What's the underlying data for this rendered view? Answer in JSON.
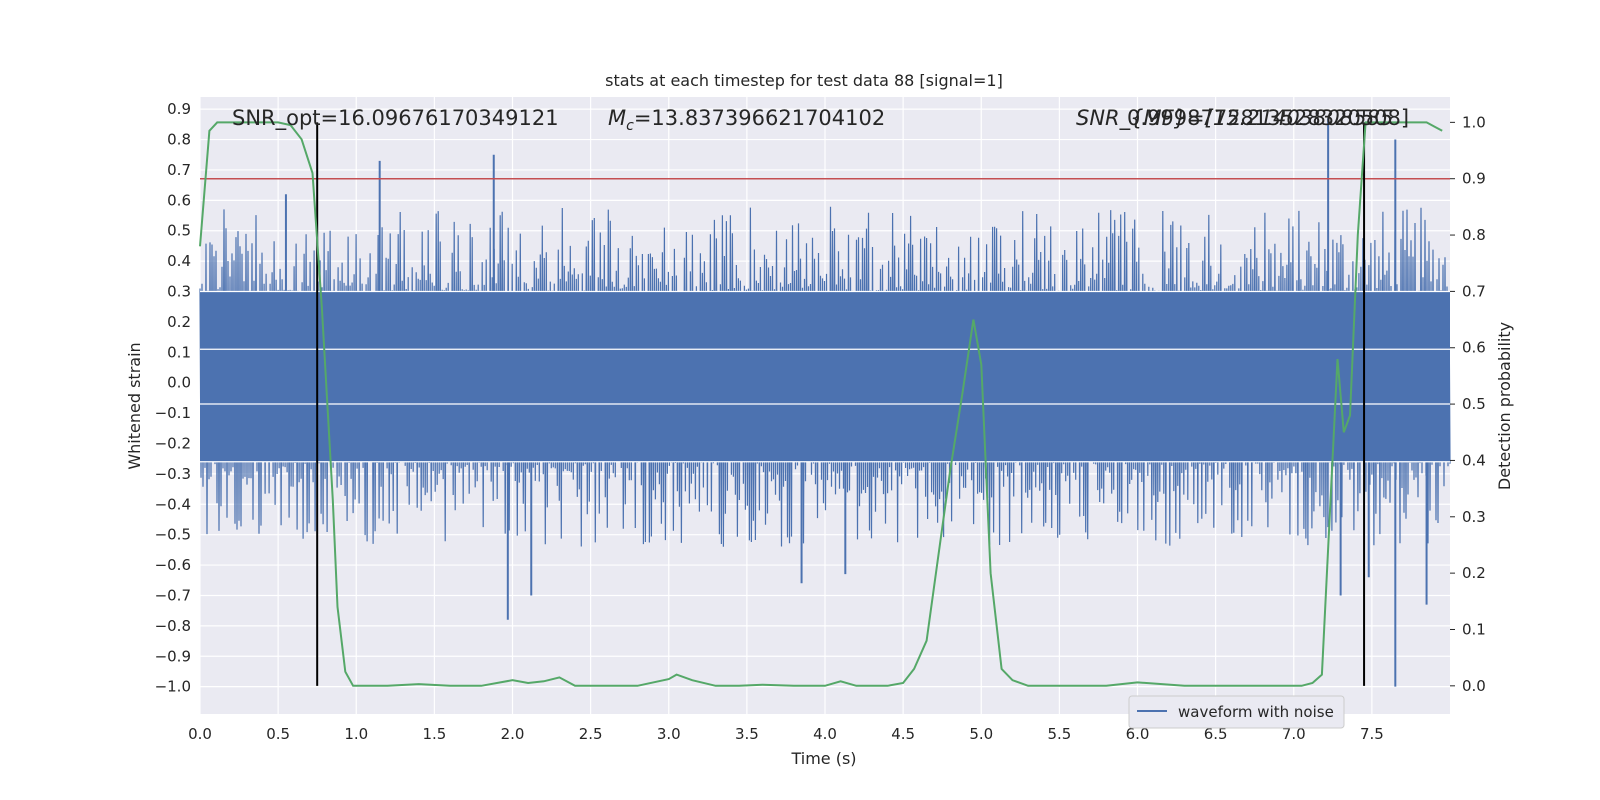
{
  "chart_data": {
    "type": "line",
    "title": "stats at each timestep for test data 88 [signal=1]",
    "xlabel": "Time (s)",
    "ylabel_left": "Whitened strain",
    "ylabel_right": "Detection probability",
    "xlim": [
      0.0,
      8.0
    ],
    "ylim_left": [
      -1.09,
      0.94
    ],
    "ylim_right": [
      -0.05,
      1.045
    ],
    "x_ticks": [
      "0.0",
      "0.5",
      "1.0",
      "1.5",
      "2.0",
      "2.5",
      "3.0",
      "3.5",
      "4.0",
      "4.5",
      "5.0",
      "5.5",
      "6.0",
      "6.5",
      "7.0",
      "7.5"
    ],
    "y_ticks_left": [
      "0.9",
      "0.8",
      "0.7",
      "0.6",
      "0.5",
      "0.4",
      "0.3",
      "0.2",
      "0.1",
      "0.0",
      "−0.1",
      "−0.2",
      "−0.3",
      "−0.4",
      "−0.5",
      "−0.6",
      "−0.7",
      "−0.8",
      "−0.9",
      "−1.0"
    ],
    "y_ticks_right": [
      "1.0",
      "0.9",
      "0.8",
      "0.7",
      "0.6",
      "0.5",
      "0.4",
      "0.3",
      "0.2",
      "0.1",
      "0.0"
    ],
    "grid": true,
    "legend": {
      "position": "lower-right",
      "entries": [
        "waveform with noise"
      ]
    },
    "annotations": {
      "snr_opt": "SNR_opt=16.09676170349121",
      "mc_symbol": "M",
      "mc_subscript": "c",
      "mc_value": "=13.837396621704102",
      "overlap_text_a": "SNR_{MF}=[15.21403808585",
      "overlap_text_b": "0.9998772813528320508]"
    },
    "threshold": {
      "axis": "right",
      "value": 0.9,
      "color": "#c44e52"
    },
    "vertical_markers": [
      0.75,
      7.45
    ],
    "series": [
      {
        "name": "waveform with noise",
        "axis": "left",
        "color": "#4c72b0",
        "style": "noise band",
        "sample_rate_hz": 1024,
        "core_range": [
          -0.26,
          0.3
        ],
        "upper_spikes": [
          [
            1.15,
            0.73
          ],
          [
            1.88,
            0.75
          ],
          [
            7.22,
            0.87
          ],
          [
            7.65,
            0.8
          ],
          [
            0.55,
            0.62
          ]
        ],
        "lower_spikes": [
          [
            1.97,
            -0.78
          ],
          [
            2.12,
            -0.7
          ],
          [
            3.85,
            -0.66
          ],
          [
            4.13,
            -0.63
          ],
          [
            7.3,
            -0.7
          ],
          [
            7.48,
            -0.64
          ],
          [
            7.65,
            -1.0
          ],
          [
            7.85,
            -0.73
          ]
        ]
      },
      {
        "name": "Detection probability",
        "axis": "right",
        "color": "#55a868",
        "x": [
          0.0,
          0.06,
          0.11,
          0.2,
          0.3,
          0.4,
          0.5,
          0.58,
          0.65,
          0.72,
          0.78,
          0.85,
          0.88,
          0.93,
          0.98,
          1.05,
          1.2,
          1.4,
          1.6,
          1.8,
          2.0,
          2.1,
          2.2,
          2.3,
          2.4,
          2.6,
          2.8,
          3.0,
          3.05,
          3.15,
          3.3,
          3.45,
          3.6,
          3.8,
          4.0,
          4.1,
          4.2,
          4.4,
          4.5,
          4.57,
          4.65,
          4.72,
          4.8,
          4.88,
          4.95,
          5.0,
          5.06,
          5.13,
          5.2,
          5.3,
          5.5,
          5.8,
          6.0,
          6.3,
          6.6,
          6.9,
          7.05,
          7.12,
          7.18,
          7.23,
          7.28,
          7.32,
          7.36,
          7.41,
          7.46,
          7.52,
          7.6,
          7.7,
          7.85,
          7.95
        ],
        "y": [
          0.78,
          0.985,
          1.0,
          1.0,
          1.0,
          1.0,
          1.0,
          0.995,
          0.97,
          0.91,
          0.67,
          0.33,
          0.14,
          0.025,
          0.0,
          0.0,
          0.0,
          0.003,
          0.0,
          0.0,
          0.01,
          0.005,
          0.008,
          0.015,
          0.0,
          0.0,
          0.0,
          0.012,
          0.02,
          0.01,
          0.0,
          0.0,
          0.002,
          0.0,
          0.0,
          0.008,
          0.0,
          0.0,
          0.005,
          0.03,
          0.08,
          0.22,
          0.38,
          0.52,
          0.65,
          0.57,
          0.2,
          0.03,
          0.01,
          0.0,
          0.0,
          0.0,
          0.006,
          0.0,
          0.0,
          0.0,
          0.0,
          0.005,
          0.02,
          0.3,
          0.58,
          0.45,
          0.48,
          0.8,
          1.0,
          1.0,
          1.0,
          1.0,
          1.0,
          0.985
        ]
      }
    ]
  }
}
